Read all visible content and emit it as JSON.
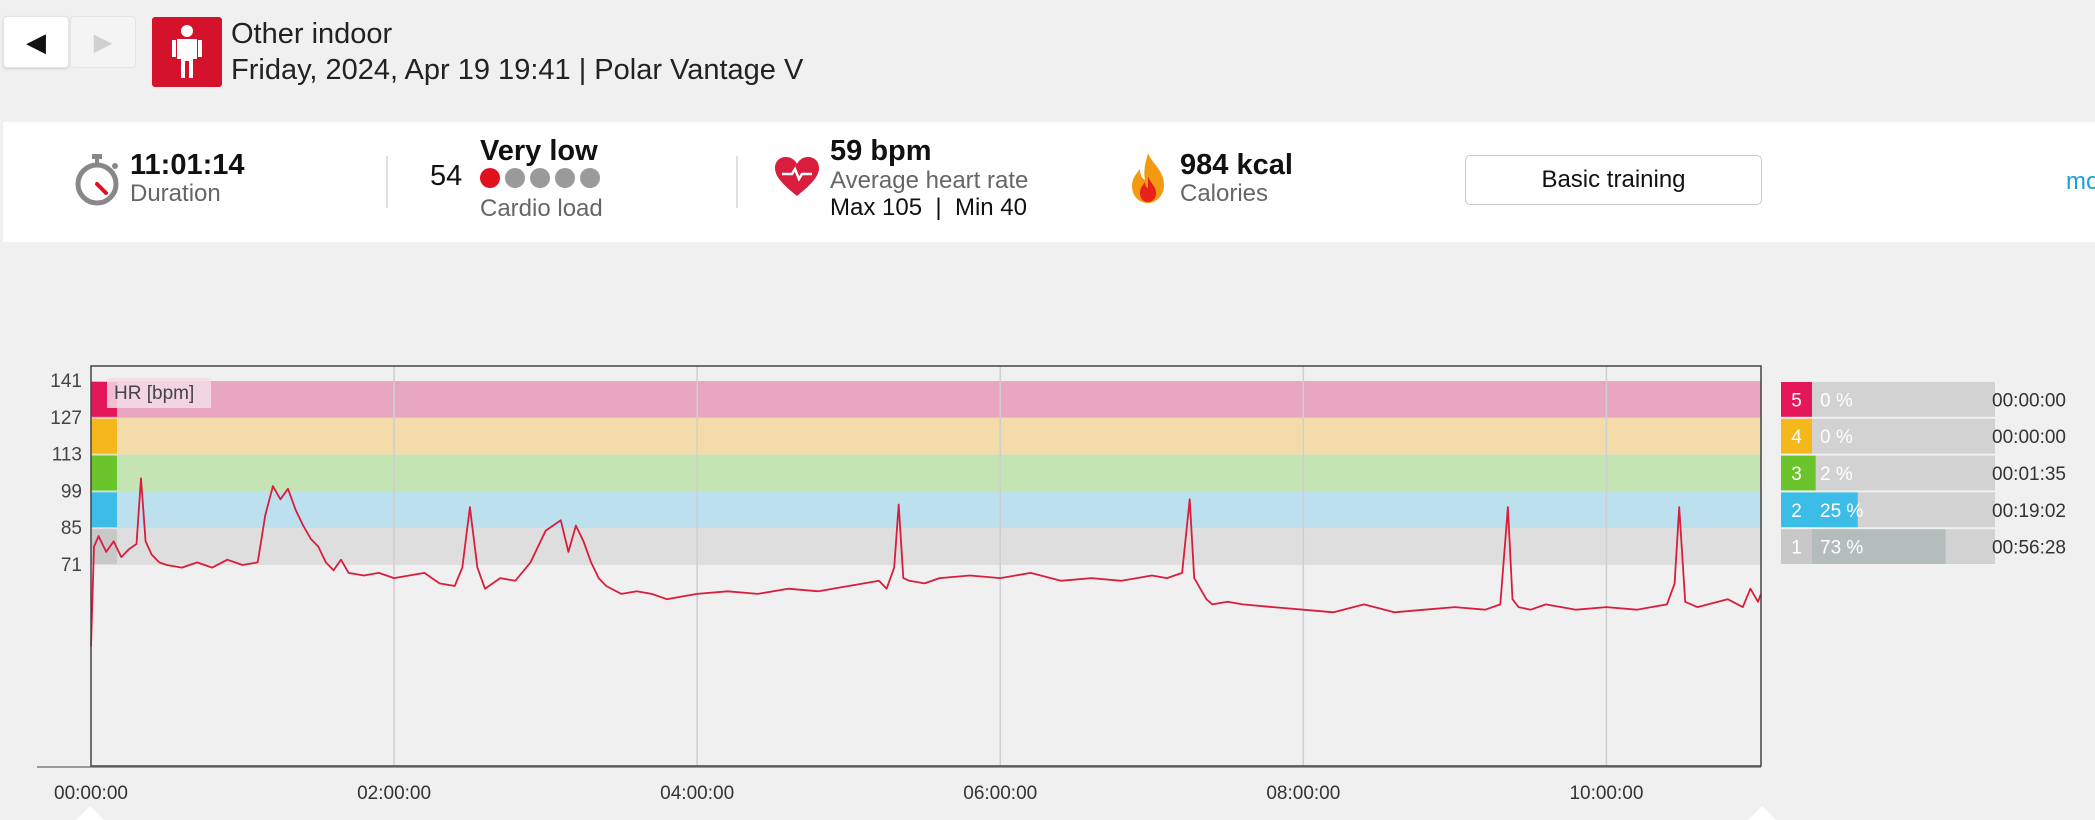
{
  "header": {
    "sport": "Other indoor",
    "subtitle": "Friday, 2024, Apr 19 19:41 | Polar Vantage V",
    "back_icon": "◀",
    "forward_icon": "▶"
  },
  "summary": {
    "duration_value": "11:01:14",
    "duration_label": "Duration",
    "cardio_load_value": "54",
    "cardio_load_status": "Very low",
    "cardio_load_label": "Cardio load",
    "cardio_load_dots_filled": 1,
    "cardio_load_dots_total": 5,
    "hr_value": "59 bpm",
    "hr_label": "Average heart rate",
    "hr_max_min": "Max 105  |  Min 40",
    "calories_value": "984 kcal",
    "calories_label": "Calories",
    "benefit_button": "Basic training",
    "more_link": "mo"
  },
  "colors": {
    "brand_red": "#d4122c",
    "hr_line": "#d81e3c",
    "zone5": "#e3175a",
    "zone4": "#f5b81c",
    "zone3": "#6cc42c",
    "zone2": "#3cbde8",
    "zone1": "#c8c8c8",
    "link": "#1aa0d8"
  },
  "chart_data": {
    "type": "line",
    "series_label": "HR [bpm]",
    "y_ticks": [
      71,
      85,
      99,
      113,
      127,
      141
    ],
    "ylim": [
      30,
      147
    ],
    "x_tick_labels": [
      "00:00:00",
      "02:00:00",
      "04:00:00",
      "06:00:00",
      "08:00:00",
      "10:00:00"
    ],
    "x_ticks_hours": [
      0,
      2,
      4,
      6,
      8,
      10
    ],
    "xlim_hours": [
      0,
      11.02
    ],
    "grid": true,
    "zones": [
      {
        "zone": "5",
        "low": 127,
        "high": 141,
        "color": "#e8a6c0",
        "percent": "0 %",
        "percent_value": 0,
        "time": "00:00:00"
      },
      {
        "zone": "4",
        "low": 113,
        "high": 127,
        "color": "#f3dcaa",
        "percent": "0 %",
        "percent_value": 0,
        "time": "00:00:00"
      },
      {
        "zone": "3",
        "low": 99,
        "high": 113,
        "color": "#c5e4b4",
        "percent": "2 %",
        "percent_value": 2,
        "time": "00:01:35"
      },
      {
        "zone": "2",
        "low": 85,
        "high": 99,
        "color": "#bde0ef",
        "percent": "25 %",
        "percent_value": 25,
        "time": "00:19:02"
      },
      {
        "zone": "1",
        "low": 71,
        "high": 85,
        "color": "#dedede",
        "percent": "73 %",
        "percent_value": 73,
        "time": "00:56:28"
      }
    ],
    "x_hours": [
      0,
      0.02,
      0.05,
      0.1,
      0.15,
      0.2,
      0.25,
      0.3,
      0.33,
      0.36,
      0.4,
      0.45,
      0.5,
      0.6,
      0.7,
      0.8,
      0.9,
      1.0,
      1.1,
      1.15,
      1.2,
      1.25,
      1.3,
      1.35,
      1.4,
      1.45,
      1.5,
      1.55,
      1.6,
      1.65,
      1.7,
      1.8,
      1.9,
      2.0,
      2.1,
      2.2,
      2.3,
      2.4,
      2.45,
      2.5,
      2.55,
      2.6,
      2.7,
      2.8,
      2.9,
      3.0,
      3.1,
      3.15,
      3.2,
      3.25,
      3.3,
      3.35,
      3.4,
      3.5,
      3.6,
      3.7,
      3.8,
      3.9,
      4.0,
      4.2,
      4.4,
      4.6,
      4.8,
      5.0,
      5.1,
      5.2,
      5.25,
      5.3,
      5.33,
      5.36,
      5.4,
      5.5,
      5.6,
      5.8,
      6.0,
      6.2,
      6.4,
      6.6,
      6.8,
      7.0,
      7.1,
      7.2,
      7.25,
      7.28,
      7.32,
      7.36,
      7.4,
      7.5,
      7.6,
      7.8,
      8.0,
      8.2,
      8.4,
      8.6,
      8.8,
      9.0,
      9.2,
      9.3,
      9.35,
      9.38,
      9.42,
      9.5,
      9.6,
      9.8,
      10.0,
      10.2,
      10.4,
      10.45,
      10.48,
      10.52,
      10.6,
      10.8,
      10.9,
      10.95,
      11.0,
      11.02
    ],
    "y_bpm": [
      40,
      78,
      82,
      76,
      80,
      74,
      77,
      79,
      104,
      80,
      75,
      72,
      71,
      70,
      72,
      70,
      73,
      71,
      72,
      90,
      101,
      96,
      100,
      92,
      86,
      81,
      78,
      72,
      69,
      73,
      68,
      67,
      68,
      66,
      67,
      68,
      64,
      63,
      70,
      93,
      70,
      62,
      66,
      65,
      72,
      84,
      88,
      76,
      86,
      80,
      72,
      66,
      63,
      60,
      61,
      60,
      58,
      59,
      60,
      61,
      60,
      62,
      61,
      63,
      64,
      65,
      62,
      70,
      94,
      66,
      65,
      64,
      66,
      67,
      66,
      68,
      65,
      66,
      65,
      67,
      66,
      68,
      96,
      66,
      62,
      58,
      56,
      57,
      56,
      55,
      54,
      53,
      56,
      53,
      54,
      55,
      54,
      56,
      93,
      58,
      55,
      54,
      56,
      54,
      55,
      54,
      56,
      64,
      93,
      57,
      55,
      58,
      55,
      62,
      57,
      60
    ]
  }
}
